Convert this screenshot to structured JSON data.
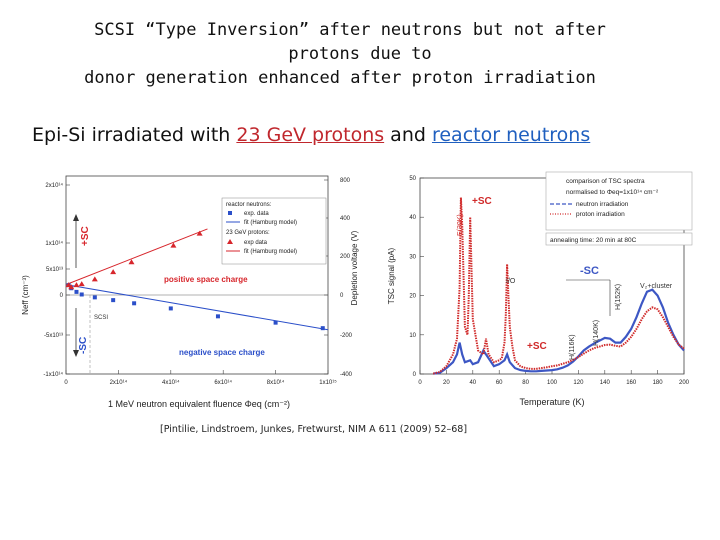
{
  "title": {
    "line1": "SCSI “Type Inversion” after neutrons but not after",
    "line2": "protons due to",
    "line3": "donor generation enhanced after proton irradiation"
  },
  "subtitle": {
    "prefix": "Epi-Si irradiated with ",
    "protons": "23 GeV protons",
    "mid": " and ",
    "neutrons": "reactor neutrons"
  },
  "citation": "[Pintilie, Lindstroem, Junkes, Fretwurst, NIM A 611 (2009) 52–68]",
  "chart_data": [
    {
      "type": "scatter",
      "xlabel": "1 MeV neutron equivalent fluence Φeq (cm⁻²)",
      "ylabel": "Neff (cm⁻³)",
      "y2label": "Depletion voltage (V)",
      "x_ticks": [
        "0",
        "2x10¹⁴",
        "4x10¹⁴",
        "6x10¹⁴",
        "8x10¹⁴",
        "1x10¹⁵"
      ],
      "y_ticks": [
        "-1x10¹⁴",
        "-5x10¹³",
        "0",
        "5x10¹³",
        "1x10¹⁴",
        "2x10¹⁴"
      ],
      "y2_ticks": [
        "-400",
        "-200",
        "0",
        "200",
        "400",
        "800"
      ],
      "xlim": [
        0,
        1000000000000000.0
      ],
      "ylim": [
        -100000000000000.0,
        200000000000000.0
      ],
      "legend": {
        "group1": "reactor neutrons:",
        "g1_data": "exp. data",
        "g1_fit": "fit (Hamburg model)",
        "group2": "23 GeV protons:",
        "g2_data": "exp data",
        "g2_fit": "fit (Hamburg model)"
      },
      "annotations": {
        "plus_sc": "+SC",
        "minus_sc": "-SC",
        "scsi": "SCSI",
        "positive": "positive space charge",
        "negative": "negative space charge"
      },
      "series": [
        {
          "name": "reactor neutrons",
          "color": "#2b4fc9",
          "x": [
            10000000000000.0,
            20000000000000.0,
            40000000000000.0,
            60000000000000.0,
            110000000000000.0,
            180000000000000.0,
            260000000000000.0,
            400000000000000.0,
            580000000000000.0,
            800000000000000.0,
            980000000000000.0
          ],
          "y": [
            19000000000000.0,
            13000000000000.0,
            6000000000000.0,
            1000000000000.0,
            -3000000000000.0,
            -6500000000000.0,
            -10500000000000.0,
            -17000000000000.0,
            -27000000000000.0,
            -35000000000000.0,
            -42000000000000.0
          ]
        },
        {
          "name": "23 GeV protons",
          "color": "#d7262c",
          "x": [
            10000000000000.0,
            20000000000000.0,
            40000000000000.0,
            60000000000000.0,
            110000000000000.0,
            180000000000000.0,
            250000000000000.0,
            410000000000000.0,
            510000000000000.0
          ],
          "y": [
            19000000000000.0,
            15000000000000.0,
            19000000000000.0,
            21000000000000.0,
            30000000000000.0,
            44000000000000.0,
            63000000000000.0,
            95000000000000.0,
            118000000000000.0
          ]
        }
      ]
    },
    {
      "type": "line",
      "xlabel": "Temperature (K)",
      "ylabel": "TSC signal (pA)",
      "x_ticks": [
        "0",
        "20",
        "40",
        "60",
        "80",
        "100",
        "120",
        "140",
        "160",
        "180",
        "200"
      ],
      "y_ticks": [
        "0",
        "10",
        "20",
        "30",
        "40",
        "50"
      ],
      "xlim": [
        0,
        200
      ],
      "ylim": [
        0,
        50
      ],
      "legend": {
        "heading1": "comparison of TSC spectra",
        "heading2": "normalised to Φeq=1x10¹⁴ cm⁻²",
        "neutron": "neutron irradiation",
        "proton": "proton irradiation"
      },
      "annealing": "annealing time: 20 min at 80C",
      "annotations": {
        "e30k": "E(30K)",
        "plus_sc_top": "+SC",
        "io": "I/O",
        "minus_sc": "-SC",
        "plus_sc_bottom": "+SC",
        "h116": "H(116K)",
        "h140": "H(140K)",
        "h152": "H(152K)",
        "v2cluster": "V₂+cluster"
      },
      "series": [
        {
          "name": "neutron irradiation",
          "color": "#3d57c4",
          "x": [
            10,
            15,
            20,
            25,
            28,
            30,
            32,
            34,
            38,
            40,
            44,
            48,
            52,
            56,
            60,
            64,
            66,
            68,
            72,
            76,
            80,
            84,
            88,
            92,
            96,
            100,
            104,
            108,
            112,
            116,
            120,
            124,
            128,
            132,
            136,
            140,
            144,
            148,
            152,
            156,
            160,
            164,
            168,
            172,
            176,
            180,
            184,
            188,
            192,
            196,
            200
          ],
          "y": [
            0.1,
            0.3,
            1.5,
            3.0,
            5.0,
            8.0,
            5.0,
            3.0,
            3.5,
            2.5,
            3.0,
            6.0,
            4.0,
            2.0,
            2.5,
            3.5,
            5.0,
            3.0,
            1.5,
            1.0,
            0.8,
            0.7,
            0.7,
            0.8,
            0.9,
            1.0,
            1.2,
            1.6,
            2.2,
            3.2,
            4.5,
            6.0,
            7.0,
            7.8,
            8.5,
            9.2,
            9.0,
            8.0,
            8.0,
            9.5,
            11.5,
            14.5,
            18.0,
            21.0,
            21.5,
            20.0,
            17.0,
            13.0,
            10.0,
            7.5,
            6.0
          ]
        },
        {
          "name": "proton irradiation",
          "color": "#d02a2a",
          "x": [
            10,
            15,
            20,
            25,
            28,
            30,
            31,
            32,
            34,
            36,
            37,
            38,
            40,
            44,
            48,
            50,
            52,
            56,
            60,
            62,
            64,
            65,
            66,
            67,
            68,
            70,
            72,
            76,
            80,
            84,
            88,
            92,
            96,
            100,
            104,
            108,
            112,
            116,
            120,
            124,
            128,
            132,
            136,
            140,
            144,
            148,
            152,
            156,
            160,
            164,
            168,
            172,
            176,
            180,
            184,
            188,
            192,
            196,
            200
          ],
          "y": [
            0.1,
            0.5,
            2.0,
            5.0,
            9.0,
            22.0,
            45.0,
            38.0,
            12.0,
            10.0,
            20.0,
            40.0,
            14.0,
            6.0,
            5.0,
            9.0,
            5.0,
            3.0,
            3.5,
            4.0,
            8.0,
            15.0,
            28.0,
            20.0,
            12.0,
            7.0,
            3.5,
            2.0,
            1.5,
            1.3,
            1.3,
            1.5,
            1.7,
            2.0,
            2.2,
            2.6,
            3.0,
            3.6,
            4.3,
            5.2,
            6.0,
            6.6,
            7.0,
            7.4,
            7.5,
            7.2,
            7.0,
            8.0,
            9.5,
            11.5,
            14.0,
            16.0,
            17.0,
            16.5,
            14.5,
            12.0,
            9.5,
            7.5,
            6.5
          ]
        }
      ]
    }
  ]
}
